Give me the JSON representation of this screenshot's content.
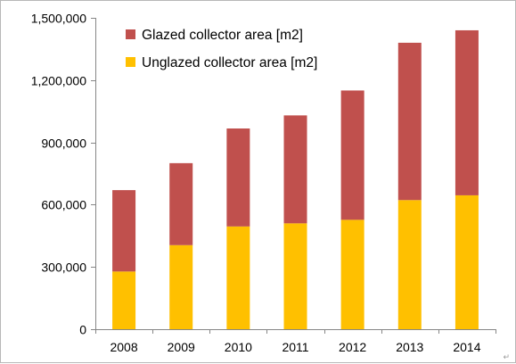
{
  "chart_data": {
    "type": "bar",
    "stacked": true,
    "categories": [
      "2008",
      "2009",
      "2010",
      "2011",
      "2012",
      "2013",
      "2014"
    ],
    "series": [
      {
        "name": "Unglazed collector area [m2]",
        "color": "#FFC000",
        "values": [
          278000,
          405000,
          495000,
          510000,
          527000,
          622000,
          645000
        ]
      },
      {
        "name": "Glazed collector area [m2]",
        "color": "#C0504D",
        "values": [
          392000,
          395000,
          472000,
          520000,
          623000,
          758000,
          795000
        ]
      }
    ],
    "ylim": [
      0,
      1500000
    ],
    "yticks": [
      0,
      300000,
      600000,
      900000,
      1200000,
      1500000
    ],
    "ytick_labels": [
      "0",
      "300,000",
      "600,000",
      "900,000",
      "1,200,000",
      "1,500,000"
    ],
    "grid": false,
    "legend": "top-left inside plot",
    "legend_order": [
      "Glazed collector area [m2]",
      "Unglazed collector area [m2]"
    ],
    "title": "",
    "xlabel": "",
    "ylabel": ""
  }
}
